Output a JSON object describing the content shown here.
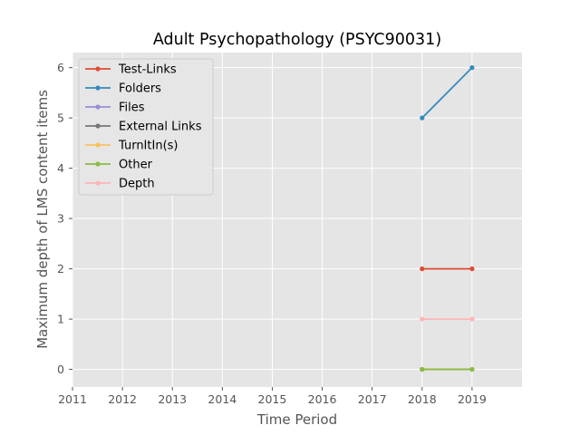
{
  "chart_data": {
    "type": "line",
    "title": "Adult Psychopathology (PSYC90031)",
    "xlabel": "Time Period",
    "ylabel": "Maximum depth of LMS content items",
    "xlim": [
      2011,
      2020
    ],
    "ylim": [
      -0.35,
      6.3
    ],
    "xticks": [
      2011,
      2012,
      2013,
      2014,
      2015,
      2016,
      2017,
      2018,
      2019
    ],
    "yticks": [
      0,
      1,
      2,
      3,
      4,
      5,
      6
    ],
    "grid": true,
    "legend_position": "top-left",
    "series": [
      {
        "name": "Test-Links",
        "color": "#e24a33",
        "x": [
          2018,
          2019
        ],
        "y": [
          2,
          2
        ]
      },
      {
        "name": "Folders",
        "color": "#348abd",
        "x": [
          2018,
          2019
        ],
        "y": [
          5,
          6
        ]
      },
      {
        "name": "Files",
        "color": "#988ed5",
        "x": [
          2018,
          2019
        ],
        "y": [
          0,
          0
        ]
      },
      {
        "name": "External Links",
        "color": "#777777",
        "x": [
          2018,
          2019
        ],
        "y": [
          0,
          0
        ]
      },
      {
        "name": "TurnItIn(s)",
        "color": "#fbc15e",
        "x": [
          2018,
          2019
        ],
        "y": [
          0,
          0
        ]
      },
      {
        "name": "Other",
        "color": "#8eba42",
        "x": [
          2018,
          2019
        ],
        "y": [
          0,
          0
        ]
      },
      {
        "name": "Depth",
        "color": "#ffb5b8",
        "x": [
          2018,
          2019
        ],
        "y": [
          1,
          1
        ]
      }
    ]
  }
}
